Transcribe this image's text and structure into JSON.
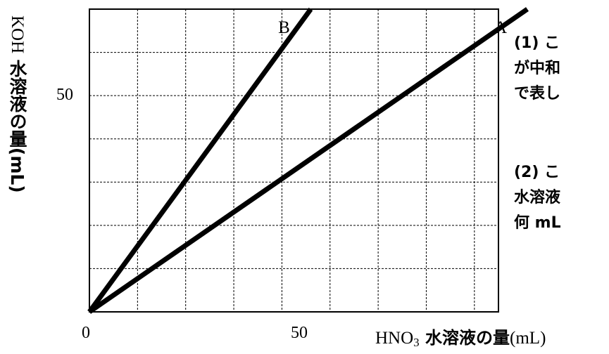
{
  "chart_data": {
    "type": "line",
    "xlabel_pre": "HNO",
    "xlabel_sub": "3",
    "xlabel_post": " 水溶液の量",
    "xlabel_unit": "(mL)",
    "ylabel_pre": "KOH",
    "ylabel_post": " 水溶液の量",
    "ylabel_unit": "(mL)",
    "xlim": [
      0,
      85
    ],
    "ylim": [
      0,
      70
    ],
    "grid": true,
    "grid_step": 10,
    "x_ticks": [
      {
        "value": 0,
        "label": "0"
      },
      {
        "value": 50,
        "label": "50"
      }
    ],
    "y_ticks": [
      {
        "value": 50,
        "label": "50"
      }
    ],
    "series": [
      {
        "name": "A",
        "x": [
          0,
          91
        ],
        "y": [
          0,
          70
        ]
      },
      {
        "name": "B",
        "x": [
          0,
          46
        ],
        "y": [
          0,
          70
        ]
      }
    ]
  },
  "questions": [
    {
      "lines": [
        "(1) こ",
        "が中和",
        "で表し"
      ]
    },
    {
      "lines": [
        "(2) こ",
        "水溶液",
        "何 mL"
      ]
    }
  ]
}
